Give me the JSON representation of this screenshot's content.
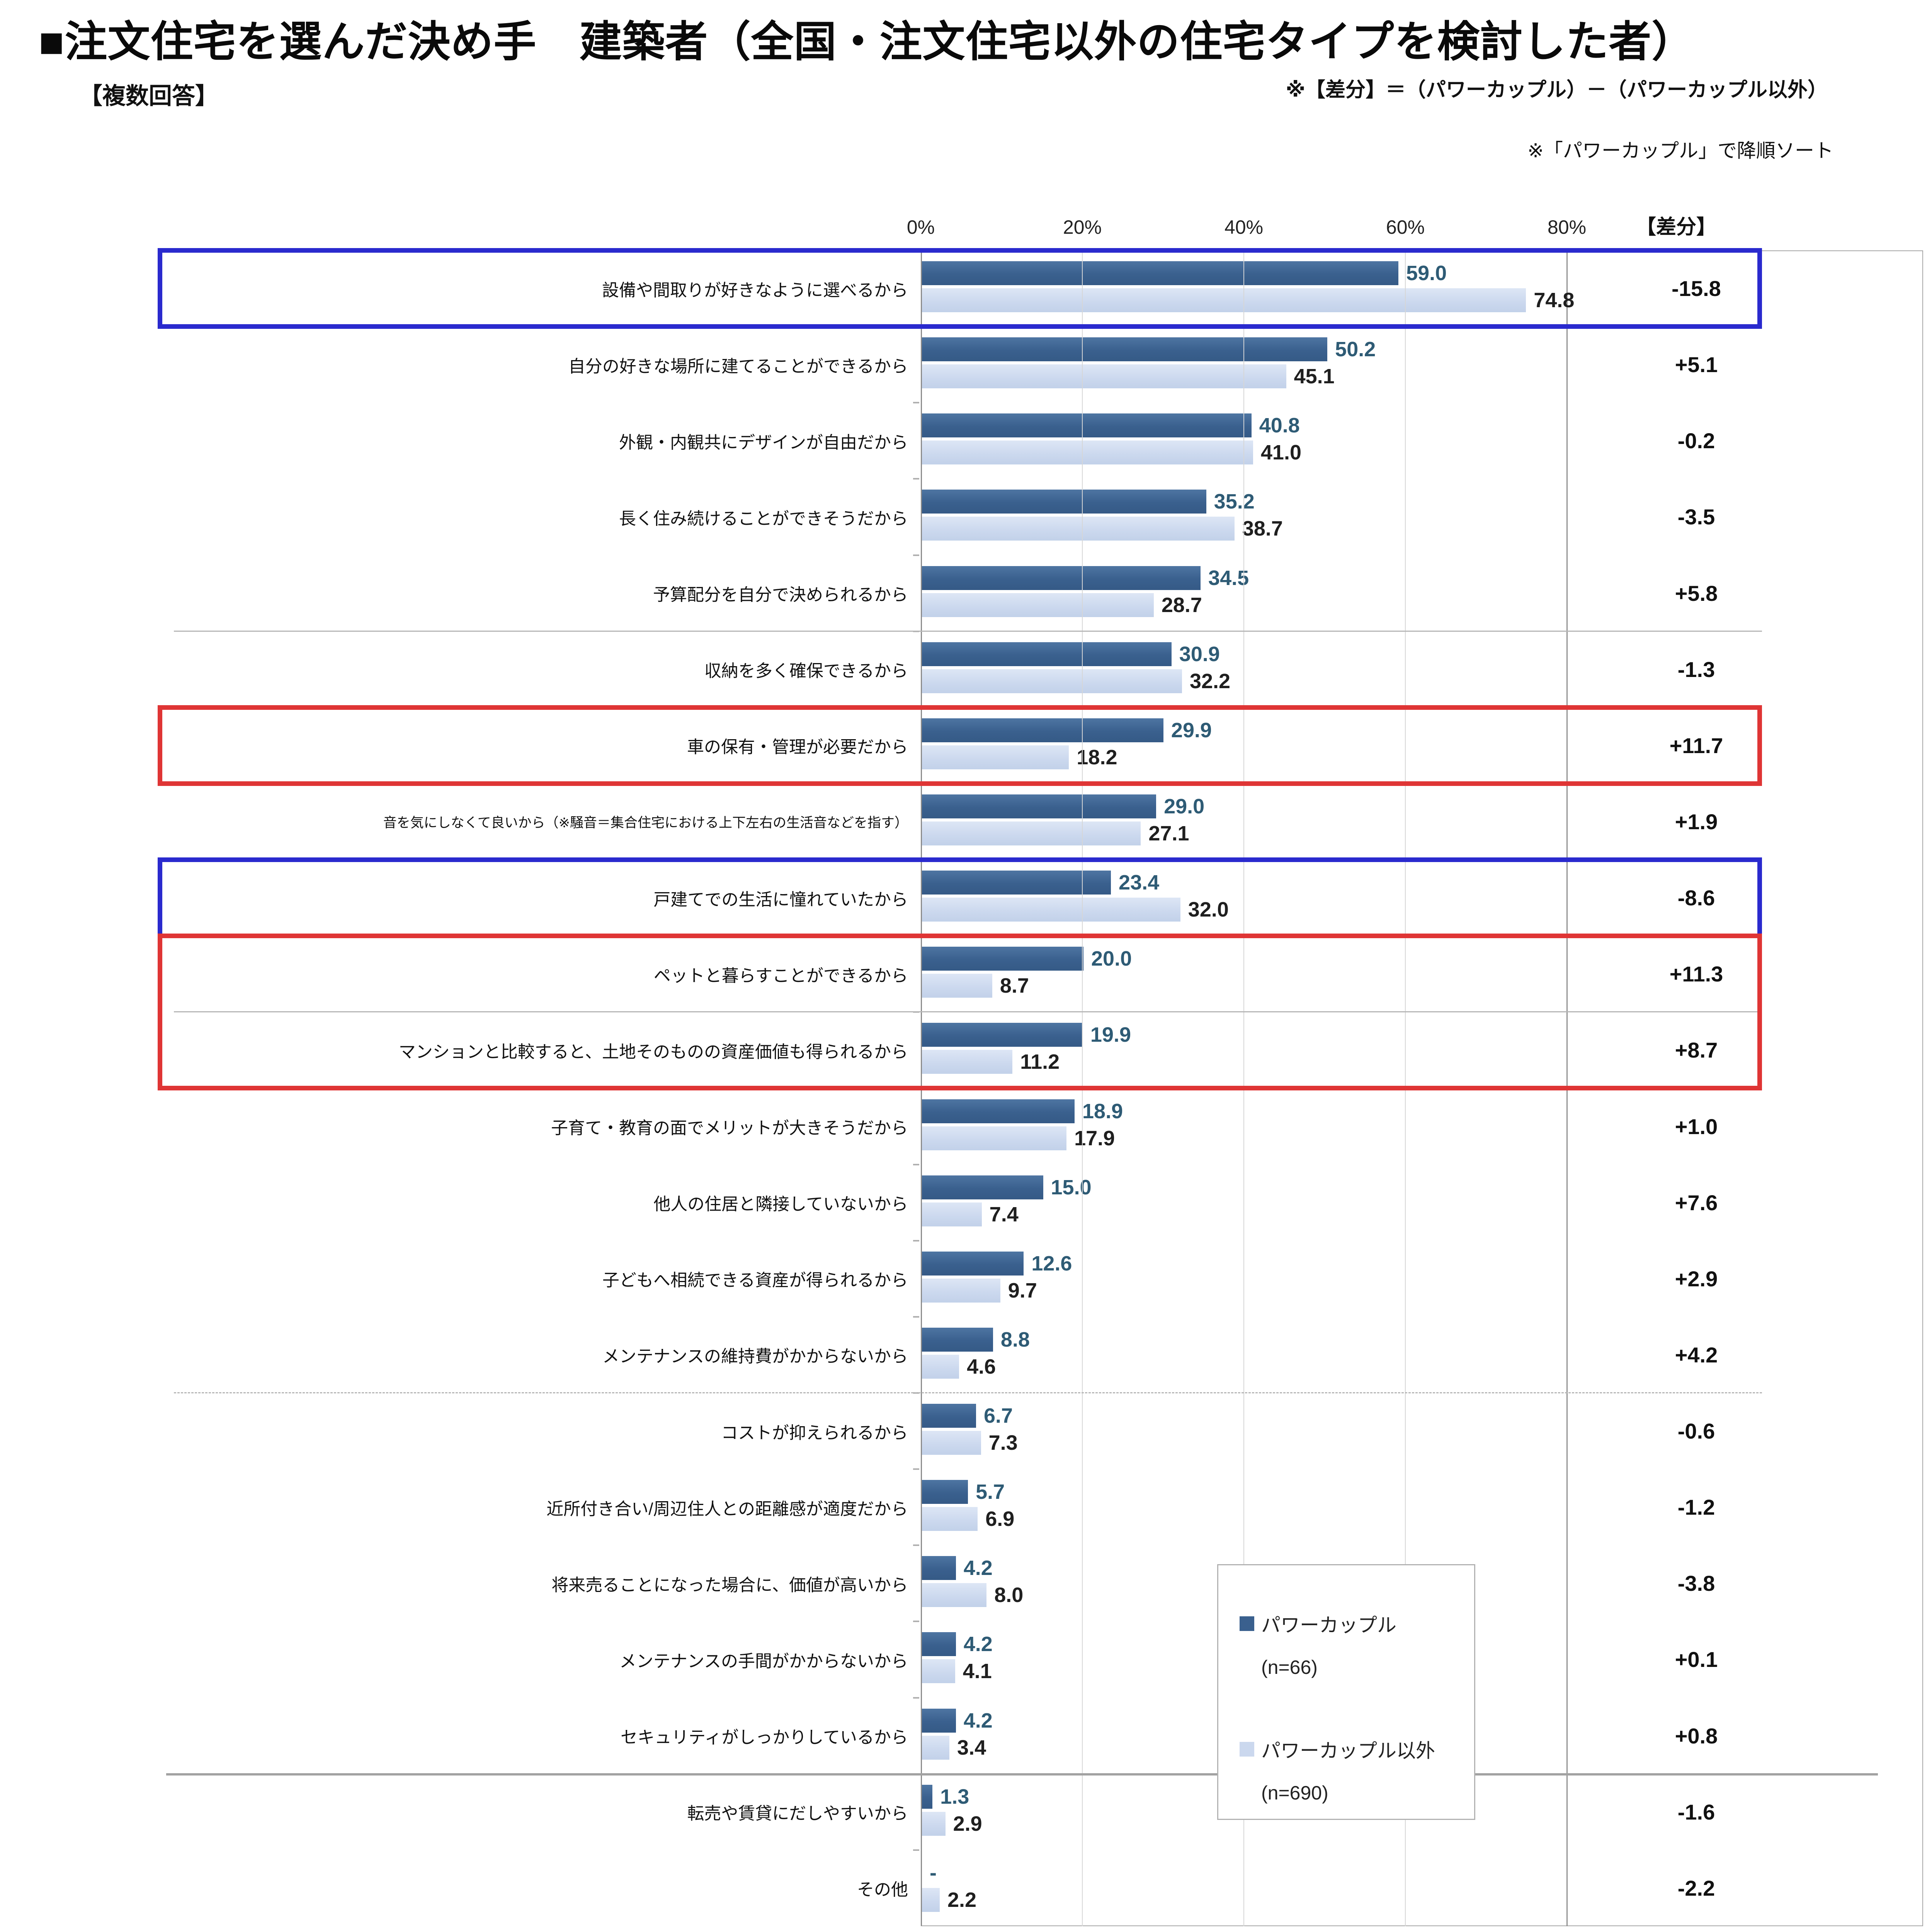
{
  "title": "■注文住宅を選んだ決め手　建築者（全国・注文住宅以外の住宅タイプを検討した者）",
  "subtitle": "【複数回答】",
  "notes": {
    "diff_formula": "※【差分】＝（パワーカップル）－（パワーカップル以外）",
    "sort_note": "※「パワーカップル」で降順ソート"
  },
  "axis": {
    "ticks": [
      "0%",
      "20%",
      "40%",
      "60%",
      "80%"
    ],
    "tick_values": [
      0,
      20,
      40,
      60,
      80
    ],
    "max": 80,
    "diff_header": "【差分】"
  },
  "legend": [
    {
      "label": "パワーカップル",
      "n_label": "(n=66)",
      "color": "#3a608e"
    },
    {
      "label": "パワーカップル以外",
      "n_label": "(n=690)",
      "color": "#cbd8ee"
    }
  ],
  "colors": {
    "bar_power": "#3a608e",
    "bar_nonpower": "#cbd8ee",
    "value_power_text": "#2e5b75",
    "highlight_blue": "#2a2ace",
    "highlight_red": "#df3535"
  },
  "chart_data": {
    "type": "bar",
    "orientation": "horizontal",
    "title": "注文住宅を選んだ決め手　建築者（全国・注文住宅以外の住宅タイプを検討した者）",
    "xlabel": "",
    "ylabel": "",
    "xlim": [
      0,
      80
    ],
    "grid": true,
    "legend_position": "inside-bottom-right",
    "categories": [
      "設備や間取りが好きなように選べるから",
      "自分の好きな場所に建てることができるから",
      "外観・内観共にデザインが自由だから",
      "長く住み続けることができそうだから",
      "予算配分を自分で決められるから",
      "収納を多く確保できるから",
      "車の保有・管理が必要だから",
      "音を気にしなくて良いから（※騒音＝集合住宅における上下左右の生活音などを指す）",
      "戸建てでの生活に憧れていたから",
      "ペットと暮らすことができるから",
      "マンションと比較すると、土地そのものの資産価値も得られるから",
      "子育て・教育の面でメリットが大きそうだから",
      "他人の住居と隣接していないから",
      "子どもへ相続できる資産が得られるから",
      "メンテナンスの維持費がかからないから",
      "コストが抑えられるから",
      "近所付き合い/周辺住人との距離感が適度だから",
      "将来売ることになった場合に、価値が高いから",
      "メンテナンスの手間がかからないから",
      "セキュリティがしっかりしているから",
      "転売や賃貸にだしやすいから",
      "その他"
    ],
    "series": [
      {
        "name": "パワーカップル (n=66)",
        "values": [
          59.0,
          50.2,
          40.8,
          35.2,
          34.5,
          30.9,
          29.9,
          29.0,
          23.4,
          20.0,
          19.9,
          18.9,
          15.0,
          12.6,
          8.8,
          6.7,
          5.7,
          4.2,
          4.2,
          4.2,
          1.3,
          null
        ],
        "value_labels": [
          "59.0",
          "50.2",
          "40.8",
          "35.2",
          "34.5",
          "30.9",
          "29.9",
          "29.0",
          "23.4",
          "20.0",
          "19.9",
          "18.9",
          "15.0",
          "12.6",
          "8.8",
          "6.7",
          "5.7",
          "4.2",
          "4.2",
          "4.2",
          "1.3",
          "-"
        ]
      },
      {
        "name": "パワーカップル以外 (n=690)",
        "values": [
          74.8,
          45.1,
          41.0,
          38.7,
          28.7,
          32.2,
          18.2,
          27.1,
          32.0,
          8.7,
          11.2,
          17.9,
          7.4,
          9.7,
          4.6,
          7.3,
          6.9,
          8.0,
          4.1,
          3.4,
          2.9,
          2.2
        ],
        "value_labels": [
          "74.8",
          "45.1",
          "41.0",
          "38.7",
          "28.7",
          "32.2",
          "18.2",
          "27.1",
          "32.0",
          "8.7",
          "11.2",
          "17.9",
          "7.4",
          "9.7",
          "4.6",
          "7.3",
          "6.9",
          "8.0",
          "4.1",
          "3.4",
          "2.9",
          "2.2"
        ]
      }
    ],
    "diff_labels": [
      "-15.8",
      "+5.1",
      "-0.2",
      "-3.5",
      "+5.8",
      "-1.3",
      "+11.7",
      "+1.9",
      "-8.6",
      "+11.3",
      "+8.7",
      "+1.0",
      "+7.6",
      "+2.9",
      "+4.2",
      "-0.6",
      "-1.2",
      "-3.8",
      "+0.1",
      "+0.8",
      "-1.6",
      "-2.2"
    ],
    "small_label_rows": [
      7
    ],
    "separators": [
      {
        "after_row": 4,
        "style": "solid-thin"
      },
      {
        "after_row": 9,
        "style": "solid-thin"
      },
      {
        "after_row": 14,
        "style": "dashed"
      },
      {
        "after_row": 19,
        "style": "solid-thick"
      }
    ],
    "highlights": [
      {
        "type": "blue",
        "from": 0,
        "to": 0
      },
      {
        "type": "red",
        "from": 6,
        "to": 6
      },
      {
        "type": "blue",
        "from": 8,
        "to": 8
      },
      {
        "type": "red",
        "from": 9,
        "to": 10
      }
    ]
  }
}
